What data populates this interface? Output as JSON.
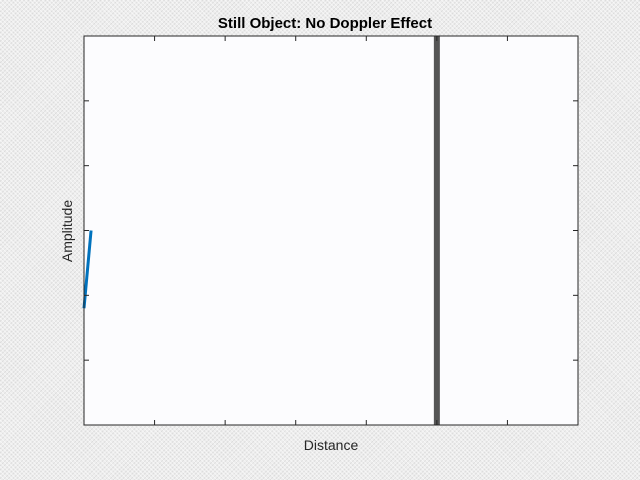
{
  "chart_data": {
    "type": "line",
    "title": "Still Object: No Doppler Effect",
    "xlabel": "Distance",
    "ylabel": "Amplitude",
    "xlim": [
      0,
      7
    ],
    "ylim": [
      -3,
      3
    ],
    "xticks": [
      0,
      1,
      2,
      3,
      4,
      5,
      6,
      7
    ],
    "yticks": [
      -3,
      -2,
      -1,
      0,
      1,
      2,
      3
    ],
    "tick_labels_visible": false,
    "grid": false,
    "series": [
      {
        "name": "",
        "color": "#0072bd",
        "x": [
          0,
          0.1
        ],
        "y": [
          -1.2,
          0
        ]
      }
    ],
    "markers": [
      {
        "type": "vertical-line",
        "x": 5.0,
        "color": "#555555"
      }
    ]
  },
  "colors": {
    "plot_background": "#fcfcfe",
    "axes": "#262626"
  }
}
